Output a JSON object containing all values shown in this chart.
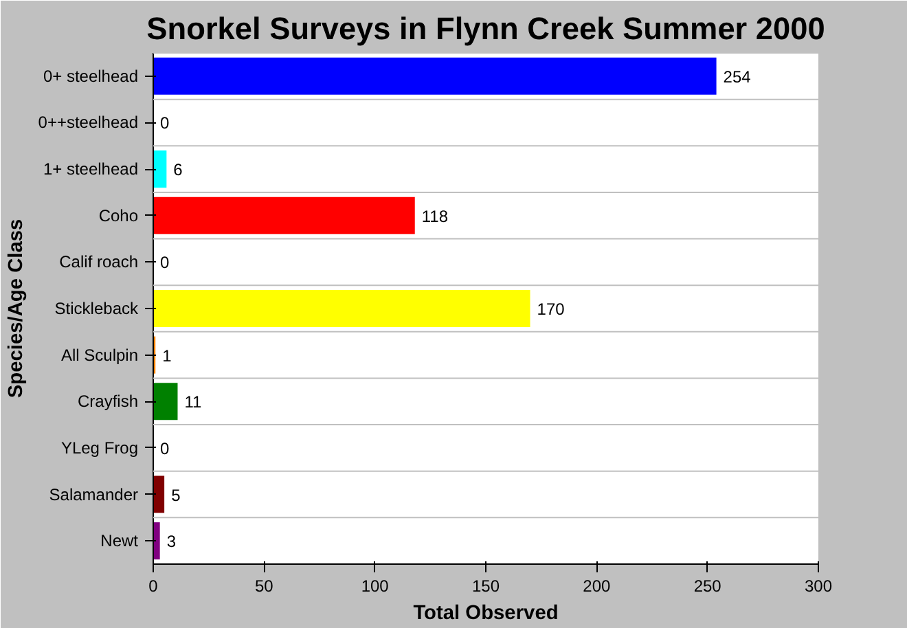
{
  "chart_data": {
    "type": "bar",
    "orientation": "horizontal",
    "title": "Snorkel Surveys in Flynn Creek Summer 2000",
    "xlabel": "Total Observed",
    "ylabel": "Species/Age Class",
    "categories": [
      "0+ steelhead",
      "0++steelhead",
      "1+ steelhead",
      "Coho",
      "Calif roach",
      "Stickleback",
      "All Sculpin",
      "Crayfish",
      "YLeg Frog",
      "Salamander",
      "Newt"
    ],
    "values": [
      254,
      0,
      6,
      118,
      0,
      170,
      1,
      11,
      0,
      5,
      3
    ],
    "colors": [
      "#0000ff",
      "#ff00ff",
      "#00ffff",
      "#ff0000",
      "#808000",
      "#ffff00",
      "#ff8000",
      "#008000",
      "#000080",
      "#800000",
      "#800080"
    ],
    "xlim": [
      0,
      300
    ],
    "xticks": [
      0,
      50,
      100,
      150,
      200,
      250,
      300
    ],
    "grid": "y",
    "data_labels": true
  }
}
